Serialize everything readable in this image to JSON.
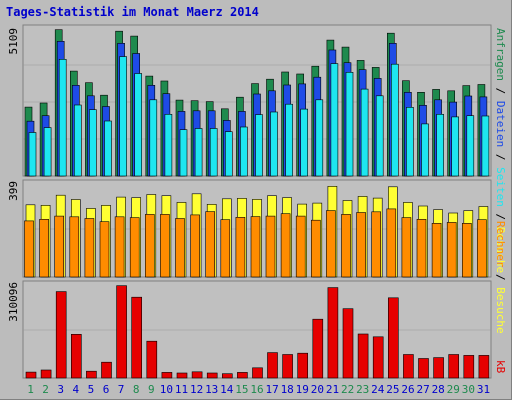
{
  "title": "Tages-Statistik im Monat Maerz 2014",
  "colors": {
    "background": "#bcbcbc",
    "plot_background": "#c0c0c0",
    "title": "#0000cc",
    "anfragen": "#1e8a4e",
    "dateien": "#1e4be6",
    "seiten": "#1ee6f0",
    "besuche": "#ffff33",
    "rechner": "#ff8c00",
    "kb": "#e60000",
    "weekday_label": "#0000cc",
    "weekend_label": "#1e8a4e"
  },
  "right_axis_labels": {
    "top": [
      {
        "text": "Anfragen",
        "color": "#1e8a4e"
      },
      {
        "text": " / ",
        "color": "#000000"
      },
      {
        "text": "Dateien",
        "color": "#1e4be6"
      },
      {
        "text": " / ",
        "color": "#000000"
      },
      {
        "text": "Seiten",
        "color": "#1ee6f0"
      },
      {
        "text": " / ",
        "color": "#000000"
      },
      {
        "text": "Besuche",
        "color": "#ffff33"
      }
    ],
    "middle": [
      {
        "text": "Rechner",
        "color": "#ff8c00"
      },
      {
        "text": " / ",
        "color": "#000000"
      },
      {
        "text": "Besuche",
        "color": "#ffff33"
      }
    ],
    "bottom": [
      {
        "text": "kB",
        "color": "#e60000"
      }
    ]
  },
  "chart_data": [
    {
      "type": "bar",
      "panel": "top",
      "ymax_label": "5109",
      "ylim": [
        0,
        5109
      ],
      "categories": [
        "1",
        "2",
        "3",
        "4",
        "5",
        "6",
        "7",
        "8",
        "9",
        "10",
        "11",
        "12",
        "13",
        "14",
        "15",
        "16",
        "17",
        "18",
        "19",
        "20",
        "21",
        "22",
        "23",
        "24",
        "25",
        "26",
        "27",
        "28",
        "29",
        "30",
        "31"
      ],
      "series": [
        {
          "name": "Anfragen",
          "values": [
            2380,
            2520,
            5050,
            3620,
            3220,
            2790,
            5000,
            4830,
            3450,
            3280,
            2620,
            2600,
            2570,
            2320,
            2720,
            3190,
            3340,
            3590,
            3520,
            3790,
            4690,
            4450,
            3990,
            3750,
            4930,
            3290,
            2890,
            2990,
            2940,
            3120,
            3160
          ]
        },
        {
          "name": "Dateien",
          "values": [
            1890,
            2080,
            4650,
            3130,
            2770,
            2400,
            4580,
            4230,
            3130,
            2840,
            2230,
            2250,
            2250,
            1920,
            2230,
            2830,
            2940,
            3140,
            3180,
            3410,
            4350,
            3910,
            3670,
            3370,
            4580,
            2890,
            2440,
            2630,
            2550,
            2760,
            2730
          ]
        },
        {
          "name": "Seiten",
          "values": [
            1500,
            1670,
            4030,
            2450,
            2290,
            1900,
            4120,
            3540,
            2630,
            2130,
            1600,
            1640,
            1640,
            1530,
            1690,
            2120,
            2210,
            2480,
            2310,
            2630,
            3880,
            3580,
            3000,
            2770,
            3860,
            2370,
            1800,
            2130,
            2040,
            2080,
            2070
          ]
        }
      ]
    },
    {
      "type": "bar",
      "panel": "middle",
      "ymax_label": "399",
      "ylim": [
        0,
        399
      ],
      "categories": [
        "1",
        "2",
        "3",
        "4",
        "5",
        "6",
        "7",
        "8",
        "9",
        "10",
        "11",
        "12",
        "13",
        "14",
        "15",
        "16",
        "17",
        "18",
        "19",
        "20",
        "21",
        "22",
        "23",
        "24",
        "25",
        "26",
        "27",
        "28",
        "29",
        "30",
        "31"
      ],
      "series": [
        {
          "name": "Besuche",
          "values": [
            300,
            298,
            340,
            322,
            285,
            298,
            332,
            330,
            343,
            338,
            310,
            346,
            302,
            325,
            327,
            323,
            338,
            330,
            303,
            307,
            377,
            318,
            335,
            328,
            375,
            310,
            295,
            280,
            266,
            276,
            293
          ]
        },
        {
          "name": "Rechner",
          "values": [
            233,
            240,
            253,
            250,
            243,
            230,
            250,
            247,
            260,
            260,
            243,
            258,
            272,
            238,
            248,
            251,
            253,
            263,
            253,
            236,
            276,
            260,
            268,
            271,
            283,
            247,
            240,
            223,
            227,
            223,
            238
          ]
        }
      ]
    },
    {
      "type": "bar",
      "panel": "bottom",
      "ymax_label": "310096",
      "ylim": [
        0,
        310096
      ],
      "categories": [
        "1",
        "2",
        "3",
        "4",
        "5",
        "6",
        "7",
        "8",
        "9",
        "10",
        "11",
        "12",
        "13",
        "14",
        "15",
        "16",
        "17",
        "18",
        "19",
        "20",
        "21",
        "22",
        "23",
        "24",
        "25",
        "26",
        "27",
        "28",
        "29",
        "30",
        "31"
      ],
      "series": [
        {
          "name": "kB",
          "values": [
            19000,
            26000,
            279000,
            141000,
            22000,
            51000,
            298000,
            261000,
            119000,
            18000,
            16000,
            20000,
            16000,
            14000,
            18000,
            33000,
            82000,
            76000,
            80000,
            190000,
            292000,
            224000,
            142000,
            133000,
            259000,
            76000,
            63000,
            66000,
            76000,
            73000,
            73000
          ]
        }
      ]
    }
  ],
  "x_labels": [
    {
      "text": "1",
      "weekend": true
    },
    {
      "text": "2",
      "weekend": true
    },
    {
      "text": "3",
      "weekend": false
    },
    {
      "text": "4",
      "weekend": false
    },
    {
      "text": "5",
      "weekend": false
    },
    {
      "text": "6",
      "weekend": false
    },
    {
      "text": "7",
      "weekend": false
    },
    {
      "text": "8",
      "weekend": true
    },
    {
      "text": "9",
      "weekend": true
    },
    {
      "text": "10",
      "weekend": false
    },
    {
      "text": "11",
      "weekend": false
    },
    {
      "text": "12",
      "weekend": false
    },
    {
      "text": "13",
      "weekend": false
    },
    {
      "text": "14",
      "weekend": false
    },
    {
      "text": "15",
      "weekend": true
    },
    {
      "text": "16",
      "weekend": true
    },
    {
      "text": "17",
      "weekend": false
    },
    {
      "text": "18",
      "weekend": false
    },
    {
      "text": "19",
      "weekend": false
    },
    {
      "text": "20",
      "weekend": false
    },
    {
      "text": "21",
      "weekend": false
    },
    {
      "text": "22",
      "weekend": true
    },
    {
      "text": "23",
      "weekend": true
    },
    {
      "text": "24",
      "weekend": false
    },
    {
      "text": "25",
      "weekend": false
    },
    {
      "text": "26",
      "weekend": false
    },
    {
      "text": "27",
      "weekend": false
    },
    {
      "text": "28",
      "weekend": false
    },
    {
      "text": "29",
      "weekend": true
    },
    {
      "text": "30",
      "weekend": true
    },
    {
      "text": "31",
      "weekend": false
    }
  ]
}
